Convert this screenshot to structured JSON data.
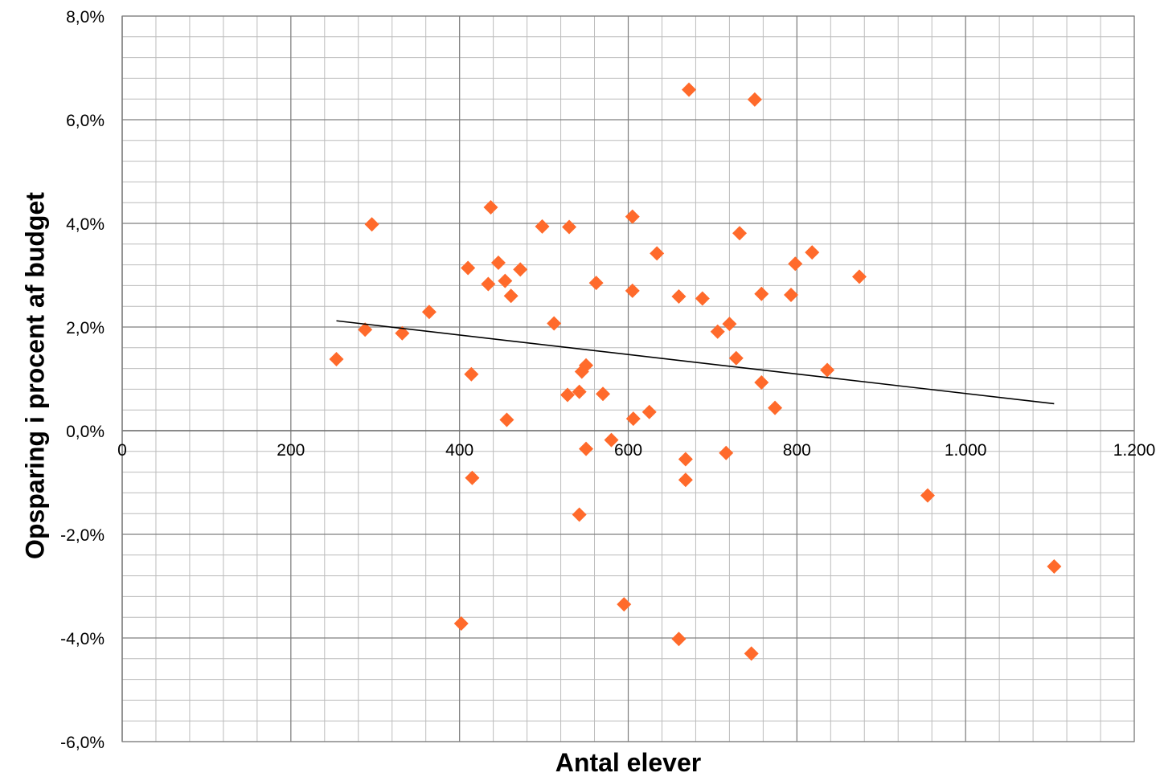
{
  "chart_data": {
    "type": "scatter",
    "title": "",
    "xlabel": "Antal elever",
    "ylabel": "Opsparing i procent af budget",
    "xlim": [
      0,
      1200
    ],
    "ylim": [
      -6.0,
      8.0
    ],
    "x_major_step": 200,
    "x_minor_step": 40,
    "y_major_step": 2.0,
    "y_minor_step": 0.4,
    "x_tick_labels": [
      "0",
      "200",
      "400",
      "600",
      "800",
      "1.000",
      "1.200"
    ],
    "y_tick_labels": [
      "-6,0%",
      "-4,0%",
      "-2,0%",
      "0,0%",
      "2,0%",
      "4,0%",
      "6,0%",
      "8,0%"
    ],
    "grid": true,
    "legend": "none",
    "colors": {
      "marker": "#ff6a2b",
      "trendline": "#000000",
      "major_grid": "#7f7f7f",
      "minor_grid": "#bcbcbc"
    },
    "series": [
      {
        "marker": "diamond",
        "points": [
          {
            "x": 254,
            "y": 1.38
          },
          {
            "x": 288,
            "y": 1.95
          },
          {
            "x": 296,
            "y": 3.98
          },
          {
            "x": 332,
            "y": 1.88
          },
          {
            "x": 364,
            "y": 2.29
          },
          {
            "x": 402,
            "y": -3.72
          },
          {
            "x": 410,
            "y": 3.14
          },
          {
            "x": 414,
            "y": 1.09
          },
          {
            "x": 415,
            "y": -0.91
          },
          {
            "x": 434,
            "y": 2.83
          },
          {
            "x": 437,
            "y": 4.31
          },
          {
            "x": 446,
            "y": 3.24
          },
          {
            "x": 454,
            "y": 2.89
          },
          {
            "x": 456,
            "y": 0.21
          },
          {
            "x": 461,
            "y": 2.6
          },
          {
            "x": 472,
            "y": 3.11
          },
          {
            "x": 498,
            "y": 3.94
          },
          {
            "x": 512,
            "y": 2.07
          },
          {
            "x": 528,
            "y": 0.69
          },
          {
            "x": 530,
            "y": 3.93
          },
          {
            "x": 542,
            "y": 0.75
          },
          {
            "x": 542,
            "y": -1.62
          },
          {
            "x": 545,
            "y": 1.14
          },
          {
            "x": 550,
            "y": 1.26
          },
          {
            "x": 550,
            "y": -0.35
          },
          {
            "x": 562,
            "y": 2.85
          },
          {
            "x": 570,
            "y": 0.71
          },
          {
            "x": 580,
            "y": -0.18
          },
          {
            "x": 595,
            "y": -3.35
          },
          {
            "x": 605,
            "y": 4.13
          },
          {
            "x": 605,
            "y": 2.7
          },
          {
            "x": 606,
            "y": 0.23
          },
          {
            "x": 625,
            "y": 0.36
          },
          {
            "x": 634,
            "y": 3.42
          },
          {
            "x": 660,
            "y": 2.59
          },
          {
            "x": 660,
            "y": -4.02
          },
          {
            "x": 668,
            "y": -0.55
          },
          {
            "x": 668,
            "y": -0.95
          },
          {
            "x": 672,
            "y": 6.58
          },
          {
            "x": 688,
            "y": 2.55
          },
          {
            "x": 706,
            "y": 1.91
          },
          {
            "x": 716,
            "y": -0.43
          },
          {
            "x": 720,
            "y": 2.06
          },
          {
            "x": 728,
            "y": 1.4
          },
          {
            "x": 732,
            "y": 3.81
          },
          {
            "x": 746,
            "y": -4.3
          },
          {
            "x": 750,
            "y": 6.39
          },
          {
            "x": 758,
            "y": 2.64
          },
          {
            "x": 758,
            "y": 0.93
          },
          {
            "x": 774,
            "y": 0.44
          },
          {
            "x": 793,
            "y": 2.62
          },
          {
            "x": 798,
            "y": 3.22
          },
          {
            "x": 818,
            "y": 3.44
          },
          {
            "x": 836,
            "y": 1.17
          },
          {
            "x": 874,
            "y": 2.97
          },
          {
            "x": 955,
            "y": -1.25
          },
          {
            "x": 1105,
            "y": -2.62
          }
        ]
      }
    ],
    "trendline": {
      "type": "linear",
      "from": {
        "x": 254,
        "y": 2.12
      },
      "to": {
        "x": 1105,
        "y": 0.52
      }
    }
  }
}
